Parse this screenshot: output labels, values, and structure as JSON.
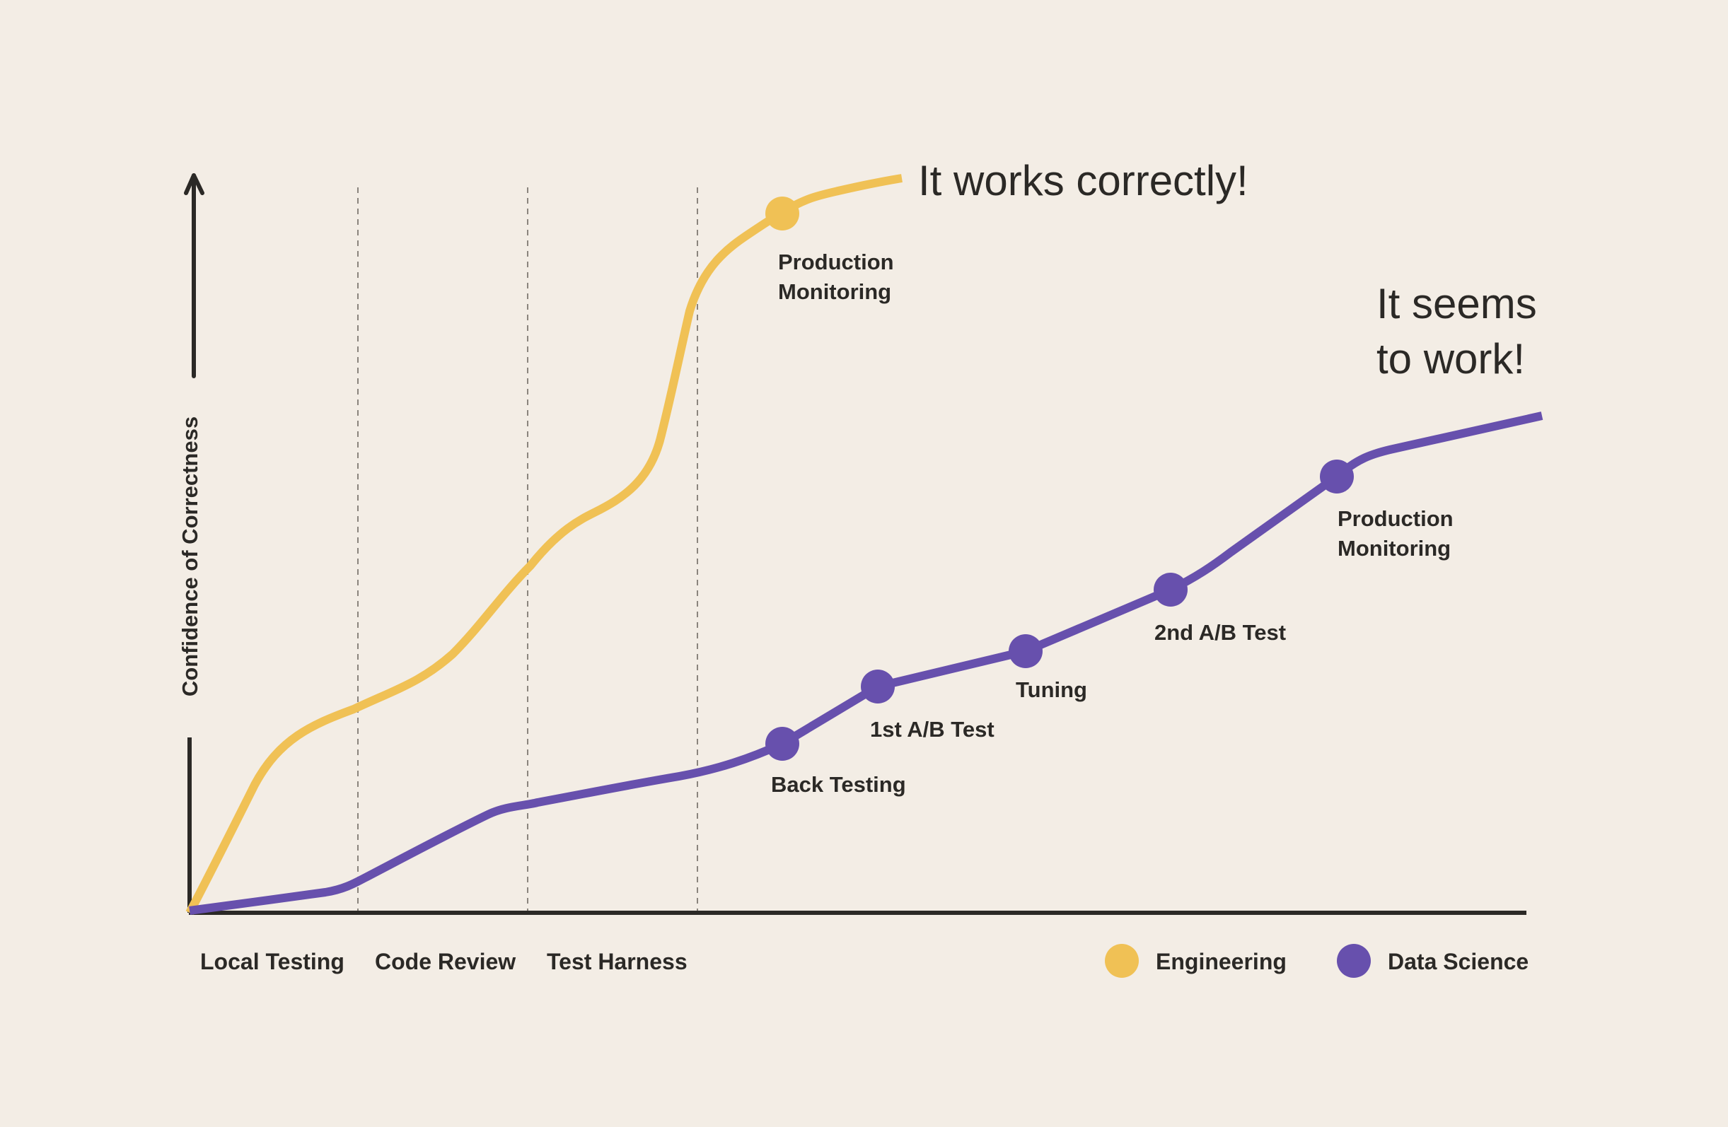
{
  "background": "#f3ede5",
  "axis": {
    "y_label": "Confidence of Correctness",
    "color": "#2b2926"
  },
  "stages": [
    "Local Testing",
    "Code Review",
    "Test Harness"
  ],
  "engineering": {
    "legend": "Engineering",
    "color": "#f0c155",
    "milestone": [
      "Production",
      "Monitoring"
    ],
    "callout": "It works correctly!"
  },
  "data_science": {
    "legend": "Data Science",
    "color": "#6750ad",
    "milestones": [
      {
        "label": [
          "Back Testing"
        ]
      },
      {
        "label": [
          "1st A/B Test"
        ]
      },
      {
        "label": [
          "Tuning"
        ]
      },
      {
        "label": [
          "2nd A/B Test"
        ]
      },
      {
        "label": [
          "Production",
          "Monitoring"
        ]
      }
    ],
    "callout": [
      "It seems",
      "to work!"
    ]
  }
}
